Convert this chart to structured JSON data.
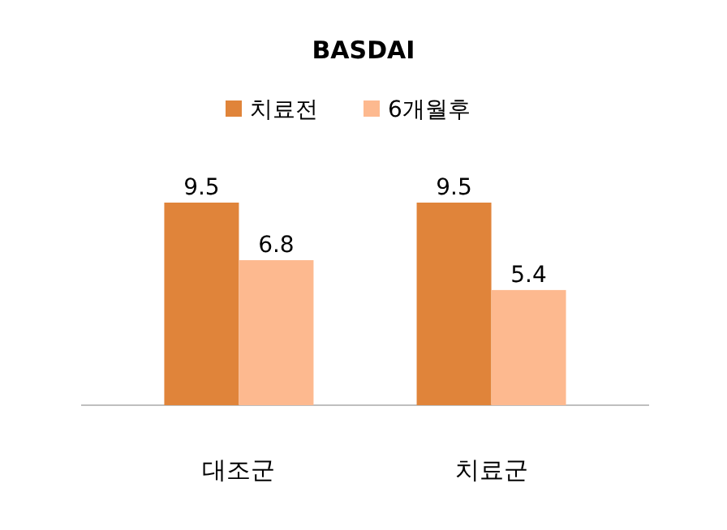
{
  "chart_data": {
    "type": "bar",
    "title": "BASDAI",
    "categories": [
      "대조군",
      "치료군"
    ],
    "series": [
      {
        "name": "치료전",
        "color": "#e0843a",
        "values": [
          9.5,
          9.5
        ]
      },
      {
        "name": "6개월후",
        "color": "#fdb98f",
        "values": [
          6.8,
          5.4
        ]
      }
    ],
    "data_labels": true,
    "legend": "top"
  }
}
